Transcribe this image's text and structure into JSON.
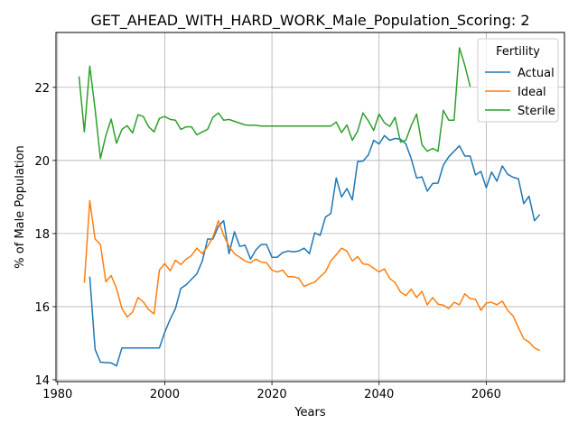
{
  "chart_data": {
    "type": "line",
    "title": "GET_AHEAD_WITH_HARD_WORK_Male_Population_Scoring: 2",
    "xlabel": "Years",
    "ylabel": "% of Male Population",
    "xlim": [
      1979.7,
      2074.6
    ],
    "ylim": [
      13.95,
      23.5
    ],
    "xticks": [
      1980,
      2000,
      2020,
      2040,
      2060
    ],
    "yticks": [
      14,
      16,
      18,
      20,
      22
    ],
    "grid": true,
    "legend": {
      "title": "Fertility",
      "position": "top-right"
    },
    "series": [
      {
        "name": "Actual",
        "color": "#1f77b4",
        "x": [
          1986,
          1987,
          1988,
          1989,
          1990,
          1991,
          1992,
          1993,
          1994,
          1995,
          1996,
          1997,
          1998,
          1999,
          2000,
          2001,
          2002,
          2003,
          2004,
          2005,
          2006,
          2007,
          2008,
          2009,
          2010,
          2011,
          2012,
          2013,
          2014,
          2015,
          2016,
          2017,
          2018,
          2019,
          2020,
          2021,
          2022,
          2023,
          2024,
          2025,
          2026,
          2027,
          2028,
          2029,
          2030,
          2031,
          2032,
          2033,
          2034,
          2035,
          2036,
          2037,
          2038,
          2039,
          2040,
          2041,
          2042,
          2043,
          2044,
          2045,
          2046,
          2047,
          2048,
          2049,
          2050,
          2051,
          2052,
          2053,
          2054,
          2055,
          2056,
          2057,
          2058,
          2059,
          2060,
          2061,
          2062,
          2063,
          2064,
          2065,
          2066,
          2067,
          2068,
          2069,
          2070
        ],
        "values": [
          16.82,
          14.83,
          14.48,
          14.47,
          14.46,
          14.38,
          14.87,
          14.87,
          14.87,
          14.87,
          14.87,
          14.87,
          14.87,
          14.87,
          15.3,
          15.65,
          15.95,
          16.5,
          16.6,
          16.75,
          16.9,
          17.25,
          17.85,
          17.85,
          18.2,
          18.35,
          17.45,
          18.05,
          17.65,
          17.68,
          17.3,
          17.55,
          17.7,
          17.7,
          17.35,
          17.35,
          17.48,
          17.52,
          17.5,
          17.52,
          17.6,
          17.45,
          18.02,
          17.95,
          18.45,
          18.55,
          19.52,
          19.0,
          19.23,
          18.92,
          19.97,
          19.98,
          20.15,
          20.55,
          20.45,
          20.68,
          20.55,
          20.6,
          20.58,
          20.45,
          20.05,
          19.52,
          19.55,
          19.16,
          19.37,
          19.38,
          19.87,
          20.1,
          20.25,
          20.4,
          20.12,
          20.12,
          19.6,
          19.7,
          19.25,
          19.68,
          19.43,
          19.85,
          19.62,
          19.54,
          19.5,
          18.82,
          19.02,
          18.35,
          18.52
        ]
      },
      {
        "name": "Ideal",
        "color": "#ff7f0e",
        "x": [
          1985,
          1986,
          1987,
          1988,
          1989,
          1990,
          1991,
          1992,
          1993,
          1994,
          1995,
          1996,
          1997,
          1998,
          1999,
          2000,
          2001,
          2002,
          2003,
          2004,
          2005,
          2006,
          2007,
          2008,
          2009,
          2010,
          2011,
          2012,
          2013,
          2014,
          2015,
          2016,
          2017,
          2018,
          2019,
          2020,
          2021,
          2022,
          2023,
          2024,
          2025,
          2026,
          2027,
          2028,
          2029,
          2030,
          2031,
          2032,
          2033,
          2034,
          2035,
          2036,
          2037,
          2038,
          2039,
          2040,
          2041,
          2042,
          2043,
          2044,
          2045,
          2046,
          2047,
          2048,
          2049,
          2050,
          2051,
          2052,
          2053,
          2054,
          2055,
          2056,
          2057,
          2058,
          2059,
          2060,
          2061,
          2062,
          2063,
          2064,
          2065,
          2066,
          2067,
          2068,
          2069,
          2070
        ],
        "values": [
          16.65,
          18.9,
          17.85,
          17.7,
          16.68,
          16.85,
          16.5,
          15.95,
          15.72,
          15.85,
          16.25,
          16.13,
          15.92,
          15.8,
          17.0,
          17.18,
          16.98,
          17.27,
          17.15,
          17.3,
          17.4,
          17.6,
          17.45,
          17.65,
          17.9,
          18.35,
          17.95,
          17.65,
          17.45,
          17.35,
          17.25,
          17.2,
          17.3,
          17.22,
          17.2,
          17.0,
          16.95,
          17.0,
          16.82,
          16.82,
          16.78,
          16.55,
          16.62,
          16.67,
          16.82,
          16.95,
          17.25,
          17.42,
          17.6,
          17.52,
          17.25,
          17.37,
          17.17,
          17.15,
          17.05,
          16.95,
          17.03,
          16.77,
          16.66,
          16.4,
          16.3,
          16.48,
          16.25,
          16.42,
          16.05,
          16.25,
          16.07,
          16.04,
          15.95,
          16.12,
          16.05,
          16.35,
          16.22,
          16.2,
          15.9,
          16.1,
          16.12,
          16.05,
          16.15,
          15.9,
          15.75,
          15.43,
          15.12,
          15.03,
          14.87,
          14.8
        ]
      },
      {
        "name": "Sterile",
        "color": "#2ca02c",
        "x": [
          1984,
          1985,
          1986,
          1987,
          1988,
          1989,
          1990,
          1991,
          1992,
          1993,
          1994,
          1995,
          1996,
          1997,
          1998,
          1999,
          2000,
          2001,
          2002,
          2003,
          2004,
          2005,
          2006,
          2007,
          2008,
          2009,
          2010,
          2011,
          2012,
          2013,
          2014,
          2015,
          2016,
          2017,
          2018,
          2019,
          2020,
          2021,
          2022,
          2023,
          2024,
          2025,
          2026,
          2027,
          2028,
          2029,
          2030,
          2031,
          2032,
          2033,
          2034,
          2035,
          2036,
          2037,
          2038,
          2039,
          2040,
          2041,
          2042,
          2043,
          2044,
          2045,
          2046,
          2047,
          2048,
          2049,
          2050,
          2051,
          2052,
          2053,
          2054,
          2055,
          2056,
          2057
        ],
        "values": [
          22.3,
          20.78,
          22.58,
          21.4,
          20.05,
          20.68,
          21.13,
          20.47,
          20.85,
          20.95,
          20.75,
          21.25,
          21.2,
          20.92,
          20.78,
          21.15,
          21.2,
          21.12,
          21.1,
          20.85,
          20.92,
          20.92,
          20.7,
          20.78,
          20.85,
          21.18,
          21.3,
          21.1,
          21.12,
          21.07,
          21.02,
          20.97,
          20.96,
          20.96,
          20.94,
          20.94,
          20.94,
          20.94,
          20.94,
          20.94,
          20.94,
          20.94,
          20.94,
          20.94,
          20.94,
          20.94,
          20.94,
          20.94,
          21.05,
          20.76,
          20.97,
          20.55,
          20.8,
          21.3,
          21.08,
          20.82,
          21.27,
          21.03,
          20.93,
          21.18,
          20.5,
          20.55,
          20.95,
          21.27,
          20.43,
          20.25,
          20.33,
          20.25,
          21.37,
          21.1,
          21.1,
          23.08,
          22.6,
          22.02
        ]
      }
    ]
  }
}
